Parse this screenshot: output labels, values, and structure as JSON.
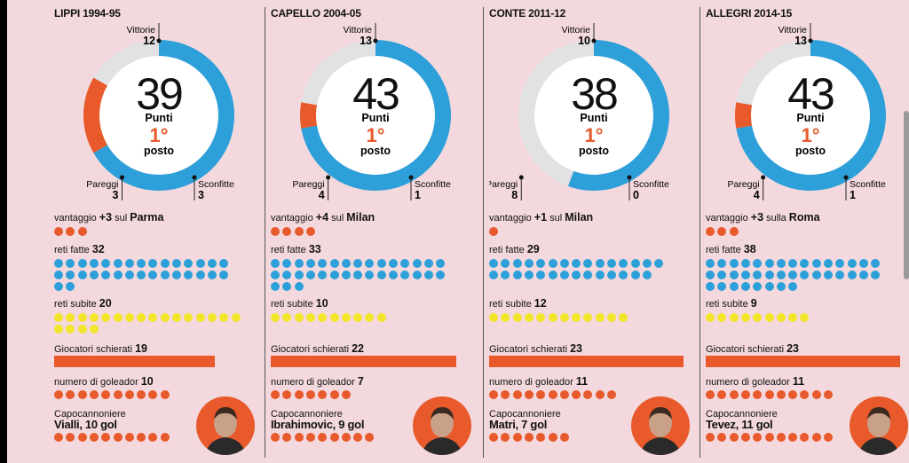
{
  "colors": {
    "wins": "#2d9fd9",
    "draws": "#e2e2e4",
    "losses": "#e8592b",
    "goals_conceded": "#f2e52a",
    "accent": "#e8592b",
    "background": "#f3d9dd"
  },
  "labels": {
    "vittorie": "Vittorie",
    "pareggi": "Pareggi",
    "sconfitte": "Sconfitte",
    "punti": "Punti",
    "posto": "posto",
    "vantaggio": "vantaggio",
    "reti_fatte": "reti fatte",
    "reti_subite": "reti subite",
    "giocatori": "Giocatori schierati",
    "goleador": "numero di goleador",
    "capocannoniere": "Capocannoniere"
  },
  "chart_data": [
    {
      "type": "donut",
      "title": "LIPPI 1994-95",
      "wins": 12,
      "draws": 3,
      "losses": 3,
      "points": "39",
      "rank": "1°",
      "lead_value": "+3",
      "lead_prep": "sul",
      "lead_team": "Parma",
      "lead_dots": 3,
      "goals_for": 32,
      "goals_against": 20,
      "players": 19,
      "scorers": 10,
      "top_scorer": "Vialli, 10 gol",
      "top_scorer_goals": 10,
      "photo": "vialli-photo"
    },
    {
      "type": "donut",
      "title": "CAPELLO 2004-05",
      "wins": 13,
      "draws": 4,
      "losses": 1,
      "points": "43",
      "rank": "1°",
      "lead_value": "+4",
      "lead_prep": "sul",
      "lead_team": "Milan",
      "lead_dots": 4,
      "goals_for": 33,
      "goals_against": 10,
      "players": 22,
      "scorers": 7,
      "top_scorer": "Ibrahimovic, 9 gol",
      "top_scorer_goals": 9,
      "photo": "ibrahimovic-photo"
    },
    {
      "type": "donut",
      "title": "CONTE 2011-12",
      "wins": 10,
      "draws": 8,
      "losses": 0,
      "points": "38",
      "rank": "1°",
      "lead_value": "+1",
      "lead_prep": "sul",
      "lead_team": "Milan",
      "lead_dots": 1,
      "goals_for": 29,
      "goals_against": 12,
      "players": 23,
      "scorers": 11,
      "top_scorer": "Matri, 7 gol",
      "top_scorer_goals": 7,
      "photo": "matri-photo"
    },
    {
      "type": "donut",
      "title": "ALLEGRI 2014-15",
      "wins": 13,
      "draws": 4,
      "losses": 1,
      "points": "43",
      "rank": "1°",
      "lead_value": "+3",
      "lead_prep": "sulla",
      "lead_team": "Roma",
      "lead_dots": 3,
      "goals_for": 38,
      "goals_against": 9,
      "players": 23,
      "scorers": 11,
      "top_scorer": "Tevez, 11 gol",
      "top_scorer_goals": 11,
      "photo": "tevez-photo"
    }
  ]
}
